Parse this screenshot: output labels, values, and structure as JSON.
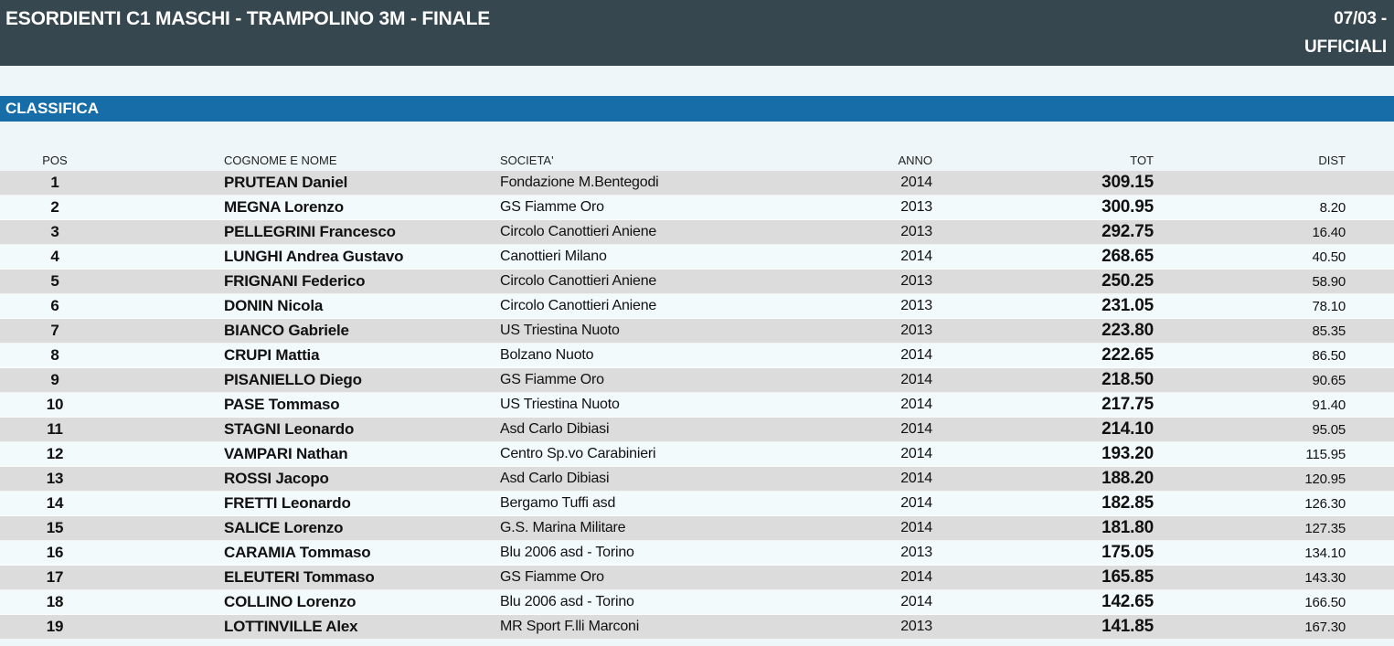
{
  "page": {
    "title": "ESORDIENTI C1 MASCHI - TRAMPOLINO 3M - FINALE",
    "date": "07/03 -",
    "status": "UFFICIALI"
  },
  "section": {
    "title": "CLASSIFICA"
  },
  "colors": {
    "header_bg": "#36474f",
    "accent_blue": "#176da7",
    "row_gray": "#dcdcdc",
    "row_light": "#f3fafc",
    "page_bg": "#eef6f9"
  },
  "table": {
    "columns": [
      "POS",
      "COGNOME E NOME",
      "SOCIETA'",
      "ANNO",
      "TOT",
      "DIST"
    ],
    "rows": [
      {
        "pos": "1",
        "name": "PRUTEAN Daniel",
        "club": "Fondazione M.Bentegodi",
        "year": "2014",
        "tot": "309.15",
        "dist": ""
      },
      {
        "pos": "2",
        "name": "MEGNA Lorenzo",
        "club": "GS Fiamme Oro",
        "year": "2013",
        "tot": "300.95",
        "dist": "8.20"
      },
      {
        "pos": "3",
        "name": "PELLEGRINI Francesco",
        "club": "Circolo Canottieri Aniene",
        "year": "2013",
        "tot": "292.75",
        "dist": "16.40"
      },
      {
        "pos": "4",
        "name": "LUNGHI Andrea Gustavo",
        "club": "Canottieri Milano",
        "year": "2014",
        "tot": "268.65",
        "dist": "40.50"
      },
      {
        "pos": "5",
        "name": "FRIGNANI Federico",
        "club": "Circolo Canottieri Aniene",
        "year": "2013",
        "tot": "250.25",
        "dist": "58.90"
      },
      {
        "pos": "6",
        "name": "DONIN Nicola",
        "club": "Circolo Canottieri Aniene",
        "year": "2013",
        "tot": "231.05",
        "dist": "78.10"
      },
      {
        "pos": "7",
        "name": "BIANCO Gabriele",
        "club": "US Triestina Nuoto",
        "year": "2013",
        "tot": "223.80",
        "dist": "85.35"
      },
      {
        "pos": "8",
        "name": "CRUPI Mattia",
        "club": "Bolzano Nuoto",
        "year": "2014",
        "tot": "222.65",
        "dist": "86.50"
      },
      {
        "pos": "9",
        "name": "PISANIELLO Diego",
        "club": "GS Fiamme Oro",
        "year": "2014",
        "tot": "218.50",
        "dist": "90.65"
      },
      {
        "pos": "10",
        "name": "PASE Tommaso",
        "club": "US Triestina Nuoto",
        "year": "2014",
        "tot": "217.75",
        "dist": "91.40"
      },
      {
        "pos": "11",
        "name": "STAGNI Leonardo",
        "club": "Asd Carlo Dibiasi",
        "year": "2014",
        "tot": "214.10",
        "dist": "95.05"
      },
      {
        "pos": "12",
        "name": "VAMPARI Nathan",
        "club": "Centro Sp.vo Carabinieri",
        "year": "2014",
        "tot": "193.20",
        "dist": "115.95"
      },
      {
        "pos": "13",
        "name": "ROSSI Jacopo",
        "club": "Asd Carlo Dibiasi",
        "year": "2014",
        "tot": "188.20",
        "dist": "120.95"
      },
      {
        "pos": "14",
        "name": "FRETTI Leonardo",
        "club": "Bergamo Tuffi asd",
        "year": "2014",
        "tot": "182.85",
        "dist": "126.30"
      },
      {
        "pos": "15",
        "name": "SALICE Lorenzo",
        "club": "G.S. Marina Militare",
        "year": "2014",
        "tot": "181.80",
        "dist": "127.35"
      },
      {
        "pos": "16",
        "name": "CARAMIA Tommaso",
        "club": "Blu 2006 asd - Torino",
        "year": "2013",
        "tot": "175.05",
        "dist": "134.10"
      },
      {
        "pos": "17",
        "name": "ELEUTERI Tommaso",
        "club": "GS Fiamme Oro",
        "year": "2014",
        "tot": "165.85",
        "dist": "143.30"
      },
      {
        "pos": "18",
        "name": "COLLINO Lorenzo",
        "club": "Blu 2006 asd - Torino",
        "year": "2014",
        "tot": "142.65",
        "dist": "166.50"
      },
      {
        "pos": "19",
        "name": "LOTTINVILLE Alex",
        "club": "MR Sport F.lli Marconi",
        "year": "2013",
        "tot": "141.85",
        "dist": "167.30"
      }
    ]
  }
}
